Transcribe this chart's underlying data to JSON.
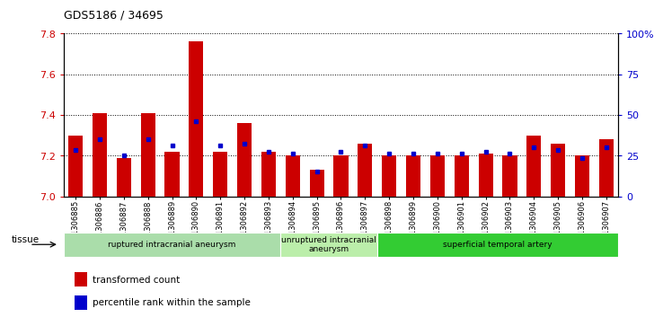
{
  "title": "GDS5186 / 34695",
  "samples": [
    "GSM1306885",
    "GSM1306886",
    "GSM1306887",
    "GSM1306888",
    "GSM1306889",
    "GSM1306890",
    "GSM1306891",
    "GSM1306892",
    "GSM1306893",
    "GSM1306894",
    "GSM1306895",
    "GSM1306896",
    "GSM1306897",
    "GSM1306898",
    "GSM1306899",
    "GSM1306900",
    "GSM1306901",
    "GSM1306902",
    "GSM1306903",
    "GSM1306904",
    "GSM1306905",
    "GSM1306906",
    "GSM1306907"
  ],
  "red_values": [
    7.3,
    7.41,
    7.19,
    7.41,
    7.22,
    7.76,
    7.22,
    7.36,
    7.22,
    7.2,
    7.13,
    7.2,
    7.26,
    7.2,
    7.2,
    7.2,
    7.2,
    7.21,
    7.2,
    7.3,
    7.26,
    7.2,
    7.28
  ],
  "blue_values": [
    7.23,
    7.28,
    7.2,
    7.28,
    7.25,
    7.37,
    7.25,
    7.26,
    7.22,
    7.21,
    7.12,
    7.22,
    7.25,
    7.21,
    7.21,
    7.21,
    7.21,
    7.22,
    7.21,
    7.24,
    7.23,
    7.19,
    7.24
  ],
  "ylim_left": [
    7.0,
    7.8
  ],
  "ylim_right": [
    0,
    100
  ],
  "yticks_left": [
    7.0,
    7.2,
    7.4,
    7.6,
    7.8
  ],
  "yticks_right": [
    0,
    25,
    50,
    75,
    100
  ],
  "ytick_labels_right": [
    "0",
    "25",
    "50",
    "75",
    "100%"
  ],
  "bar_color": "#cc0000",
  "blue_color": "#0000cc",
  "baseline": 7.0,
  "groups": [
    {
      "label": "ruptured intracranial aneurysm",
      "start": 0,
      "end": 8,
      "color": "#aaddaa"
    },
    {
      "label": "unruptured intracranial\naneurysm",
      "start": 9,
      "end": 12,
      "color": "#bbeeaa"
    },
    {
      "label": "superficial temporal artery",
      "start": 13,
      "end": 22,
      "color": "#33bb33"
    }
  ],
  "legend_items": [
    {
      "label": "transformed count",
      "color": "#cc0000"
    },
    {
      "label": "percentile rank within the sample",
      "color": "#0000cc"
    }
  ],
  "tissue_label": "tissue",
  "plot_bg": "#ffffff"
}
